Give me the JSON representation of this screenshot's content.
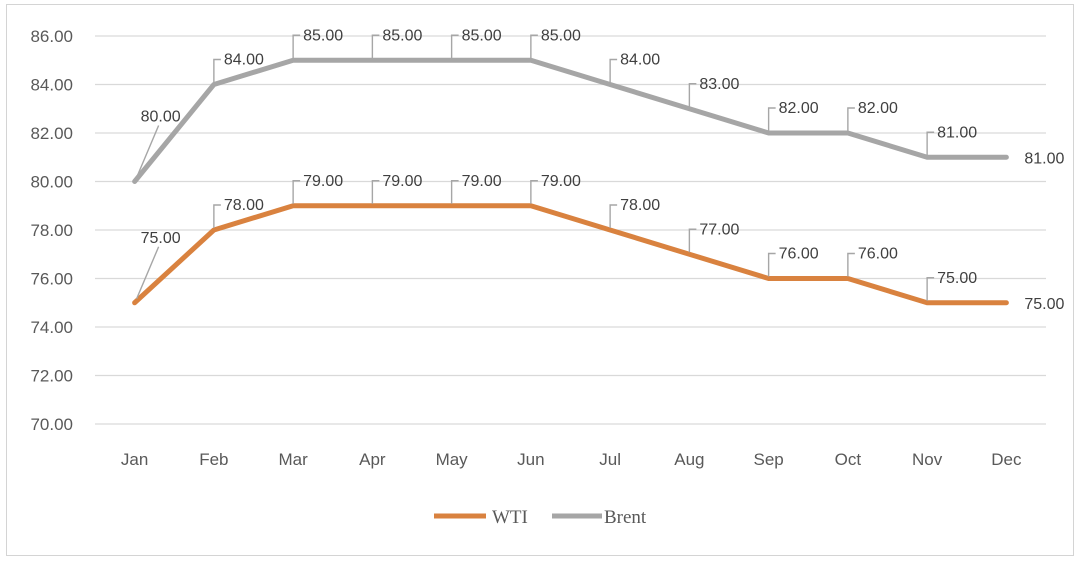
{
  "chart_data": {
    "type": "line",
    "title": "",
    "xlabel": "",
    "ylabel": "",
    "categories": [
      "Jan",
      "Feb",
      "Mar",
      "Apr",
      "May",
      "Jun",
      "Jul",
      "Aug",
      "Sep",
      "Oct",
      "Nov",
      "Dec"
    ],
    "ylim": [
      70,
      86
    ],
    "yticks": [
      "70.00",
      "72.00",
      "74.00",
      "76.00",
      "78.00",
      "80.00",
      "82.00",
      "84.00",
      "86.00"
    ],
    "grid": true,
    "legend_position": "bottom",
    "series": [
      {
        "name": "WTI",
        "color": "#d9823f",
        "values": [
          75,
          78,
          79,
          79,
          79,
          79,
          78,
          77,
          76,
          76,
          75,
          75
        ],
        "labels": [
          "75.00",
          "78.00",
          "79.00",
          "79.00",
          "79.00",
          "79.00",
          "78.00",
          "77.00",
          "76.00",
          "76.00",
          "75.00",
          "75.00"
        ]
      },
      {
        "name": "Brent",
        "color": "#a6a6a6",
        "values": [
          80,
          84,
          85,
          85,
          85,
          85,
          84,
          83,
          82,
          82,
          81,
          81
        ],
        "labels": [
          "80.00",
          "84.00",
          "85.00",
          "85.00",
          "85.00",
          "85.00",
          "84.00",
          "83.00",
          "82.00",
          "82.00",
          "81.00",
          "81.00"
        ]
      }
    ]
  }
}
